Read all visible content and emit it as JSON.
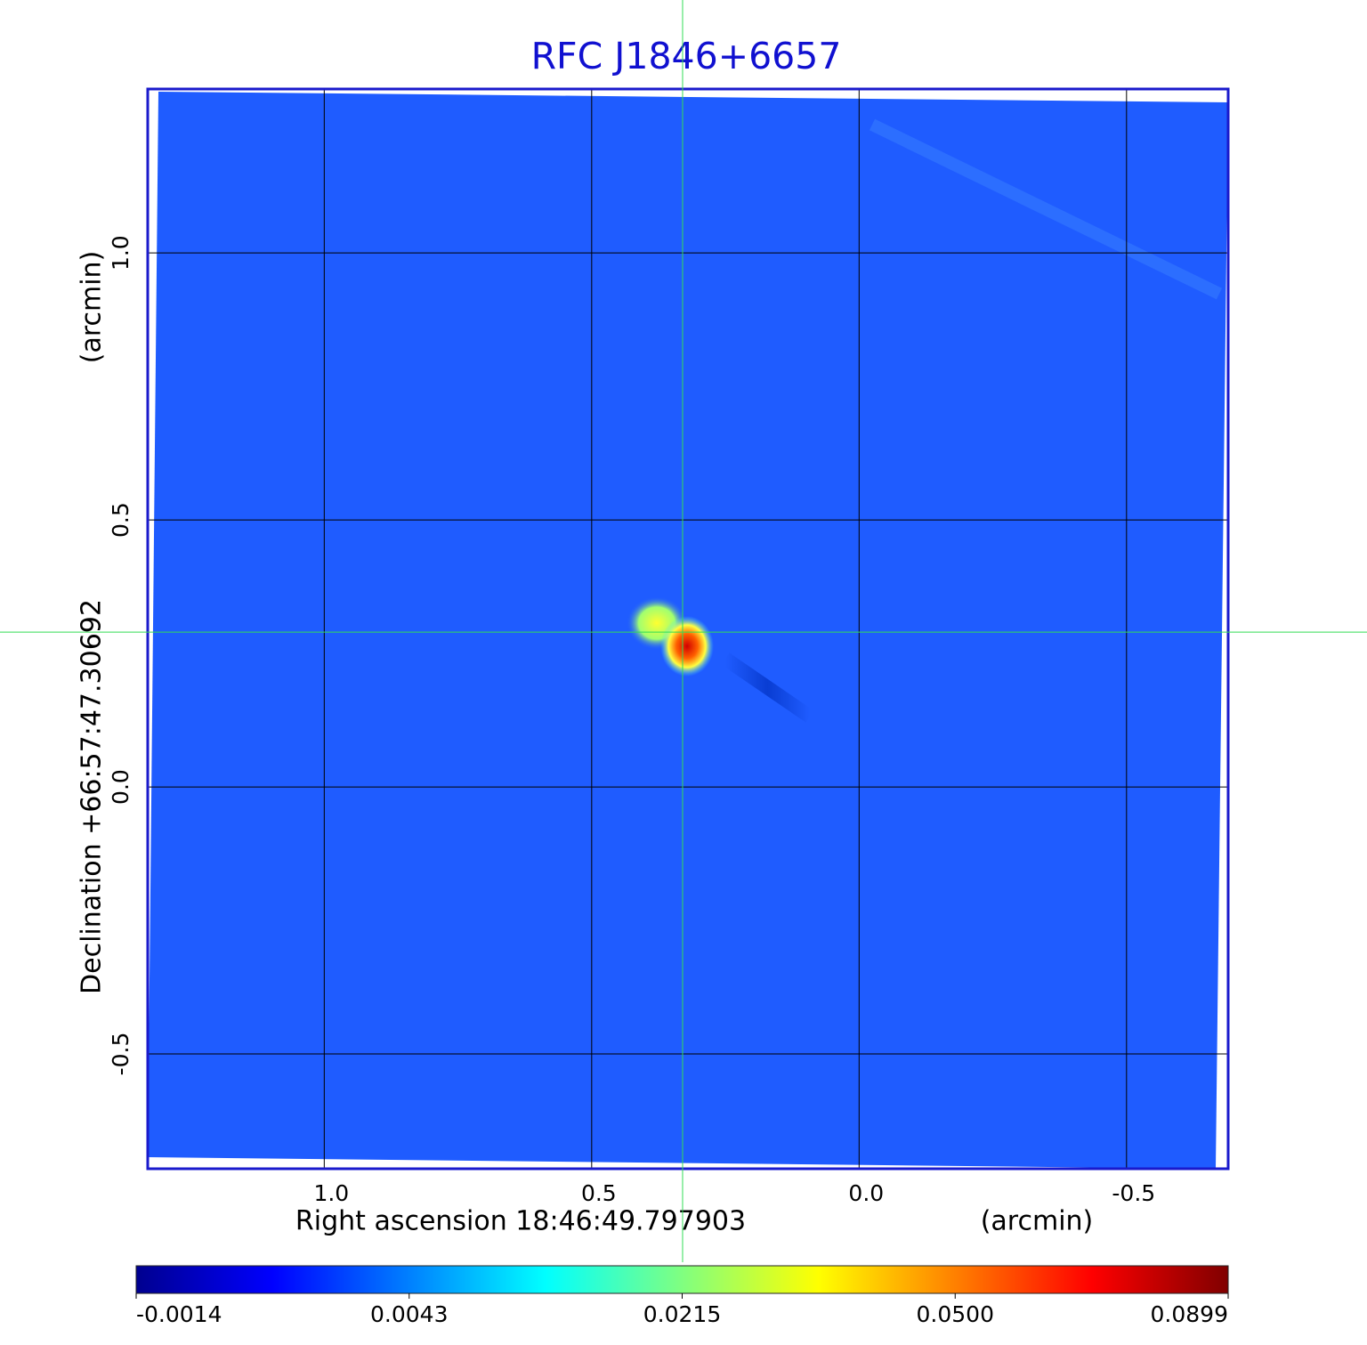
{
  "chart_data": {
    "type": "image",
    "title": "RFC J1846+6657",
    "xlabel": "Right ascension  18:46:49.797903",
    "xunit": "(arcmin)",
    "ylabel": "Declination  +66:57:47.30692",
    "yunit": "(arcmin)",
    "xlim": [
      1.33,
      -0.69
    ],
    "ylim": [
      -0.715,
      1.307
    ],
    "xticks": [
      {
        "value": 1,
        "label": "1.0"
      },
      0.5,
      {
        "value": 0,
        "label": "0.0"
      },
      -0.5
    ],
    "yticks": [
      {
        "value": 1,
        "label": "1.0"
      },
      0.5,
      {
        "value": 0,
        "label": "0.0"
      },
      -0.5
    ],
    "grid": true,
    "crosshair": {
      "x": 0.33,
      "y": 0.29,
      "color": "#33dd55"
    },
    "frame_color": "#1a1acc",
    "colorbar": {
      "colormap": [
        "#00008f",
        "#0000ff",
        "#0080ff",
        "#00ffff",
        "#80ff80",
        "#ffff00",
        "#ff8000",
        "#ff0000",
        "#800000"
      ],
      "lim": [
        -0.0014,
        0.0899
      ],
      "ticks": [
        -0.0014,
        0.0043,
        0.0215,
        {
          "value": 0.05,
          "label": "0.0500"
        },
        0.0899
      ]
    }
  }
}
